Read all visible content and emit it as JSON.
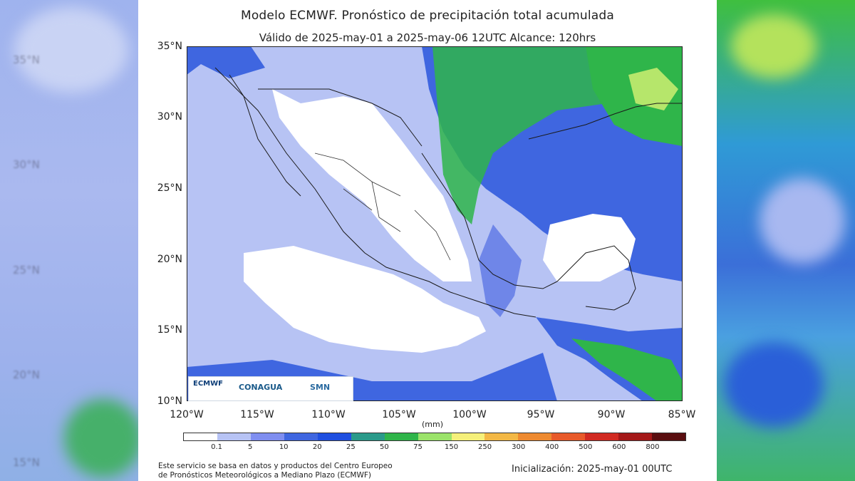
{
  "title": "Modelo ECMWF. Pronóstico de precipitación total acumulada",
  "subtitle": "Válido de 2025-may-01 a 2025-may-06 12UTC   Alcance: 120hrs",
  "map": {
    "extent": {
      "lon": [
        -120,
        -85
      ],
      "lat": [
        10,
        35
      ]
    },
    "lat_labels": [
      "35°N",
      "30°N",
      "25°N",
      "20°N",
      "15°N",
      "10°N"
    ],
    "lon_labels": [
      "120°W",
      "115°W",
      "110°W",
      "105°W",
      "100°W",
      "95°W",
      "90°W",
      "85°W"
    ],
    "colors": {
      "ocean_light": "#b7c3f4",
      "land_dry": "#ffffff",
      "blue": "#3f66e0",
      "mid_blue": "#6f86e8",
      "green": "#2fb54a",
      "light_green": "#b6e66b"
    }
  },
  "colorbar": {
    "unit": "(mm)",
    "labels": [
      "0.1",
      "5",
      "10",
      "20",
      "25",
      "50",
      "75",
      "150",
      "250",
      "300",
      "400",
      "500",
      "600",
      "800"
    ],
    "colors": [
      "#ffffff",
      "#b7c3f4",
      "#7f8ef0",
      "#3f66e0",
      "#1f4fe0",
      "#2a9a8a",
      "#2fb54a",
      "#9be36a",
      "#f5f07a",
      "#f3b845",
      "#ee8a30",
      "#e85a2a",
      "#d12a22",
      "#a41818",
      "#5a0e10"
    ]
  },
  "logos": {
    "ecmwf": "ECMWF",
    "conagua": "CONAGUA",
    "smn": "SMN"
  },
  "footer": {
    "line1": "Este servicio se basa en datos y productos del Centro Europeo",
    "line2": "de Pronósticos Meteorológicos a Mediano Plazo (ECMWF)",
    "init": "Inicialización: 2025-may-01 00UTC"
  },
  "side_labels": {
    "left": [
      "35°N",
      "30°N",
      "25°N",
      "20°N",
      "15°N"
    ],
    "right": []
  }
}
